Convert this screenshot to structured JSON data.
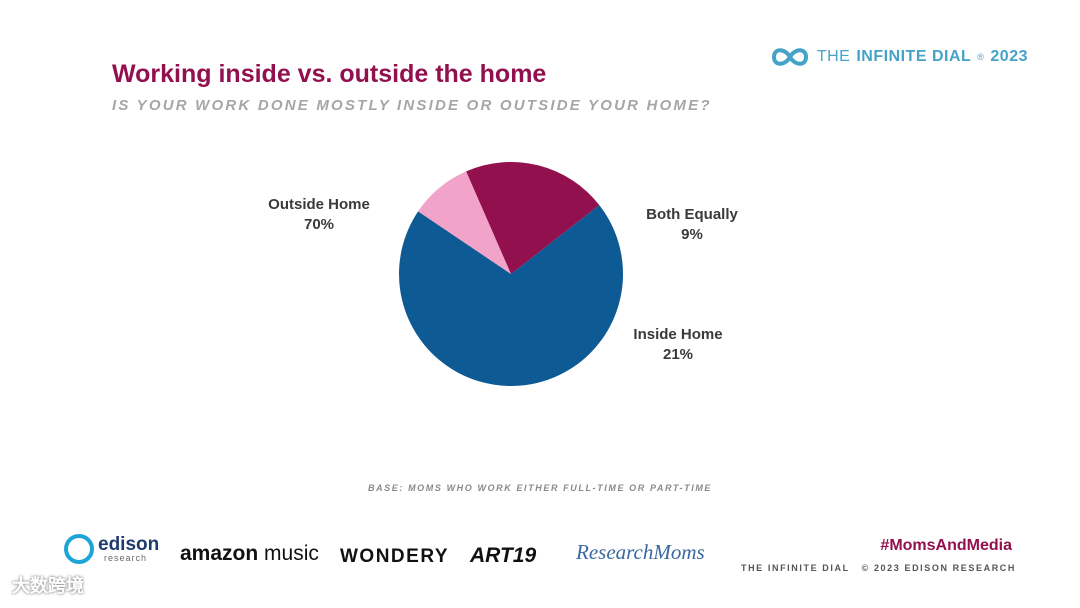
{
  "header": {
    "brand_prefix": "THE",
    "brand_name": "INFINITE DIAL",
    "brand_mark": "®",
    "brand_year": "2023",
    "title": "Working inside vs. outside the home",
    "subtitle": "IS YOUR WORK DONE MOSTLY INSIDE OR OUTSIDE YOUR HOME?"
  },
  "chart_data": {
    "type": "pie",
    "title": "Working inside vs. outside the home",
    "subtitle": "IS YOUR WORK DONE MOSTLY INSIDE OR OUTSIDE YOUR HOME?",
    "slices": [
      {
        "label": "Outside Home",
        "value": 70,
        "display": "70%",
        "color": "#0e5a94"
      },
      {
        "label": "Both Equally",
        "value": 9,
        "display": "9%",
        "color": "#f2a3c9"
      },
      {
        "label": "Inside Home",
        "value": 21,
        "display": "21%",
        "color": "#93104f"
      }
    ],
    "legend": "none"
  },
  "notes": {
    "base": "BASE: MOMS WHO WORK EITHER FULL-TIME OR PART-TIME"
  },
  "sponsors": {
    "edison": "edison",
    "edison_sub": "research",
    "amazon": "amazon",
    "amazon_music": "music",
    "wondery": "WONDERY",
    "art19": "ART19",
    "research_moms": "ResearchMoms"
  },
  "footer": {
    "hashtag": "#MomsAndMedia",
    "left": "THE INFINITE DIAL",
    "right": "© 2023 EDISON RESEARCH"
  },
  "watermark": "大数跨境",
  "colors": {
    "title": "#93104f",
    "brand": "#45a3c8",
    "outside": "#0e5a94",
    "both": "#f2a3c9",
    "inside": "#93104f"
  }
}
